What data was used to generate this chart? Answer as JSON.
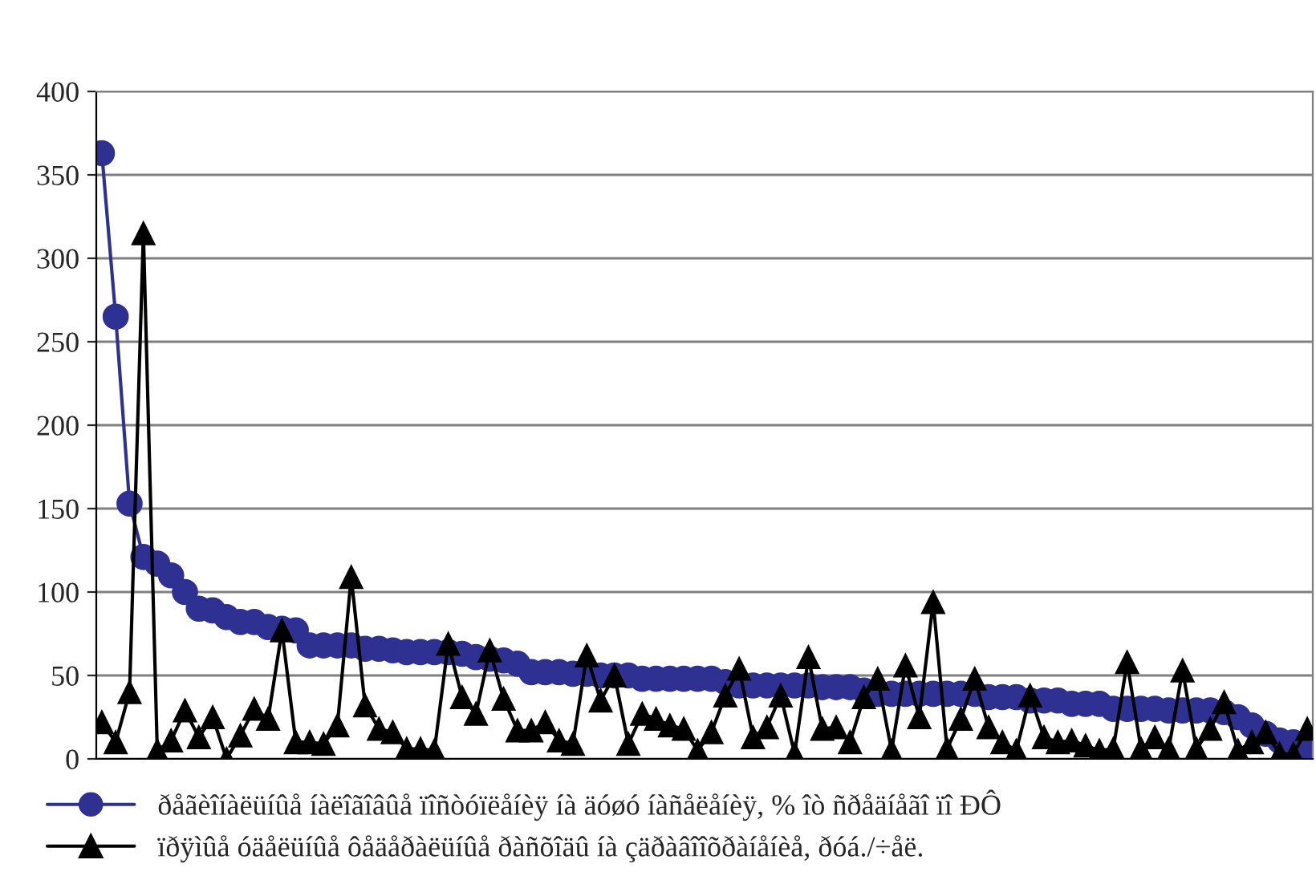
{
  "chart_data": {
    "type": "line",
    "categories": [
      null,
      null,
      null,
      null,
      null,
      null,
      null,
      null,
      null,
      null,
      null,
      null,
      null,
      null,
      null,
      null,
      null,
      null,
      null,
      null,
      null,
      null,
      null,
      null,
      null,
      null,
      null,
      null,
      null,
      null,
      null,
      null,
      null,
      null,
      null,
      null,
      null,
      null,
      null,
      null,
      null,
      null,
      null,
      null,
      null,
      null,
      null,
      null,
      null,
      null,
      null,
      null,
      null,
      null,
      null,
      null,
      null,
      null,
      null,
      null,
      null,
      null,
      null,
      null,
      null,
      null,
      null,
      null,
      null,
      null,
      null,
      null,
      null,
      null,
      null,
      null,
      null,
      null,
      null,
      null,
      null,
      null,
      null,
      null,
      null,
      null,
      null,
      null
    ],
    "series": [
      {
        "name": "ðåãèîíàëüíûå íàëîãîâûå ïîñòóïëåíèÿ íà äóøó íàñåëåíèÿ, % îò ñðåäíåãî ïî ÐÔ",
        "color": "#2e3192",
        "marker": "circle",
        "values": [
          363,
          265,
          153,
          121,
          117,
          110,
          100,
          90,
          89,
          85,
          82,
          82,
          79,
          78,
          77,
          68,
          68,
          68,
          68,
          66,
          66,
          65,
          64,
          64,
          64,
          64,
          63,
          61,
          60,
          59,
          57,
          52,
          52,
          52,
          51,
          51,
          50,
          50,
          50,
          48,
          48,
          48,
          48,
          48,
          48,
          46,
          44,
          44,
          44,
          44,
          44,
          44,
          43,
          43,
          43,
          41,
          39,
          39,
          39,
          39,
          39,
          39,
          39,
          39,
          37,
          37,
          37,
          35,
          35,
          35,
          33,
          33,
          33,
          30,
          30,
          30,
          30,
          29,
          29,
          29,
          29,
          28,
          25,
          20,
          15,
          11,
          10,
          7
        ]
      },
      {
        "name": "ïðÿìûå óäåëüíûå ôåäåðàëüíûå ðàñõîäû íà çäðàâîîõðàíåíèå, ðóá./÷åë.",
        "color": "#000000",
        "marker": "triangle",
        "values": [
          22,
          10,
          40,
          315,
          5,
          11,
          29,
          13,
          25,
          0,
          14,
          30,
          24,
          77,
          10,
          10,
          9,
          20,
          109,
          32,
          18,
          16,
          6,
          6,
          5,
          69,
          37,
          27,
          65,
          36,
          17,
          17,
          22,
          11,
          9,
          62,
          35,
          50,
          9,
          27,
          24,
          20,
          18,
          5,
          16,
          38,
          54,
          13,
          19,
          38,
          3,
          61,
          18,
          19,
          10,
          37,
          48,
          5,
          56,
          25,
          94,
          6,
          24,
          48,
          19,
          10,
          5,
          38,
          13,
          10,
          11,
          8,
          5,
          6,
          58,
          6,
          13,
          6,
          53,
          6,
          18,
          34,
          5,
          10,
          16,
          3,
          3,
          18
        ]
      }
    ],
    "ylim": [
      0,
      400
    ],
    "yticks": [
      0,
      50,
      100,
      150,
      200,
      250,
      300,
      350,
      400
    ],
    "grid": "y",
    "legend": "bottom",
    "line_style": "solid"
  }
}
